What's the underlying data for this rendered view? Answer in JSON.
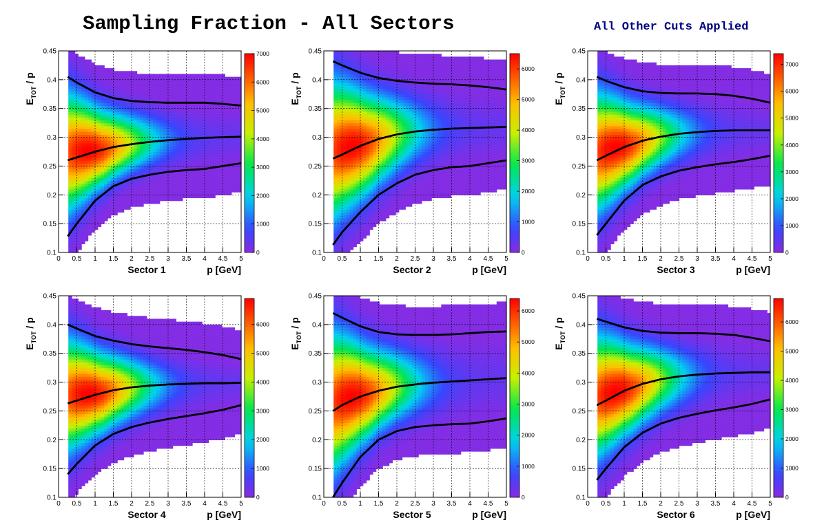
{
  "title": "Sampling Fraction - All Sectors",
  "annotation": "All Other Cuts Applied",
  "colors": {
    "annotation": "#000080",
    "curve": "#000000"
  },
  "chart_data": [
    {
      "type": "heatmap",
      "panel_label": "Sector 1",
      "xlabel": "p [GeV]",
      "ylabel_main": "E",
      "ylabel_sub": "TOT",
      "ylabel_tail": " / p",
      "xlim": [
        0,
        5
      ],
      "ylim": [
        0.1,
        0.45
      ],
      "zlim": [
        0,
        7000
      ],
      "x_ticks": [
        0,
        0.5,
        1,
        1.5,
        2,
        2.5,
        3,
        3.5,
        4,
        4.5,
        5
      ],
      "y_ticks": [
        0.1,
        0.15,
        0.2,
        0.25,
        0.3,
        0.35,
        0.4,
        0.45
      ],
      "z_ticks": [
        0,
        1000,
        2000,
        3000,
        4000,
        5000,
        6000,
        7000
      ],
      "peak": {
        "x": 0.8,
        "y": 0.28
      },
      "curves": {
        "upper": {
          "x": [
            0.25,
            0.5,
            1,
            1.5,
            2,
            2.5,
            3,
            3.5,
            4,
            4.5,
            5
          ],
          "y": [
            0.405,
            0.395,
            0.378,
            0.368,
            0.363,
            0.361,
            0.36,
            0.36,
            0.36,
            0.358,
            0.355
          ]
        },
        "mean": {
          "x": [
            0.25,
            0.5,
            1,
            1.5,
            2,
            2.5,
            3,
            3.5,
            4,
            4.5,
            5
          ],
          "y": [
            0.26,
            0.265,
            0.275,
            0.283,
            0.288,
            0.292,
            0.295,
            0.297,
            0.299,
            0.3,
            0.301
          ]
        },
        "lower": {
          "x": [
            0.25,
            0.5,
            1,
            1.5,
            2,
            2.5,
            3,
            3.5,
            4,
            4.5,
            5
          ],
          "y": [
            0.128,
            0.15,
            0.19,
            0.215,
            0.228,
            0.235,
            0.24,
            0.243,
            0.245,
            0.25,
            0.255
          ]
        }
      }
    },
    {
      "type": "heatmap",
      "panel_label": "Sector 2",
      "xlabel": "p [GeV]",
      "ylabel_main": "E",
      "ylabel_sub": "TOT",
      "ylabel_tail": " / p",
      "xlim": [
        0,
        5
      ],
      "ylim": [
        0.1,
        0.45
      ],
      "zlim": [
        0,
        6500
      ],
      "x_ticks": [
        0,
        0.5,
        1,
        1.5,
        2,
        2.5,
        3,
        3.5,
        4,
        4.5,
        5
      ],
      "y_ticks": [
        0.1,
        0.15,
        0.2,
        0.25,
        0.3,
        0.35,
        0.4,
        0.45
      ],
      "z_ticks": [
        0,
        1000,
        2000,
        3000,
        4000,
        5000,
        6000
      ],
      "peak": {
        "x": 0.75,
        "y": 0.29
      },
      "curves": {
        "upper": {
          "x": [
            0.25,
            0.5,
            1,
            1.5,
            2,
            2.5,
            3,
            3.5,
            4,
            4.5,
            5
          ],
          "y": [
            0.432,
            0.425,
            0.412,
            0.403,
            0.398,
            0.395,
            0.393,
            0.392,
            0.39,
            0.387,
            0.383
          ]
        },
        "mean": {
          "x": [
            0.25,
            0.5,
            1,
            1.5,
            2,
            2.5,
            3,
            3.5,
            4,
            4.5,
            5
          ],
          "y": [
            0.263,
            0.27,
            0.285,
            0.297,
            0.305,
            0.31,
            0.313,
            0.315,
            0.316,
            0.317,
            0.318
          ]
        },
        "lower": {
          "x": [
            0.25,
            0.5,
            1,
            1.5,
            2,
            2.5,
            3,
            3.5,
            4,
            4.5,
            5
          ],
          "y": [
            0.113,
            0.135,
            0.17,
            0.2,
            0.22,
            0.235,
            0.243,
            0.248,
            0.25,
            0.255,
            0.26
          ]
        }
      }
    },
    {
      "type": "heatmap",
      "panel_label": "Sector 3",
      "xlabel": "p [GeV]",
      "ylabel_main": "E",
      "ylabel_sub": "TOT",
      "ylabel_tail": " / p",
      "xlim": [
        0,
        5
      ],
      "ylim": [
        0.1,
        0.45
      ],
      "zlim": [
        0,
        7400
      ],
      "x_ticks": [
        0,
        0.5,
        1,
        1.5,
        2,
        2.5,
        3,
        3.5,
        4,
        4.5,
        5
      ],
      "y_ticks": [
        0.1,
        0.15,
        0.2,
        0.25,
        0.3,
        0.35,
        0.4,
        0.45
      ],
      "z_ticks": [
        0,
        1000,
        2000,
        3000,
        4000,
        5000,
        6000,
        7000
      ],
      "peak": {
        "x": 0.75,
        "y": 0.285
      },
      "curves": {
        "upper": {
          "x": [
            0.25,
            0.5,
            1,
            1.5,
            2,
            2.5,
            3,
            3.5,
            4,
            4.5,
            5
          ],
          "y": [
            0.405,
            0.398,
            0.387,
            0.38,
            0.377,
            0.376,
            0.376,
            0.375,
            0.372,
            0.367,
            0.36
          ]
        },
        "mean": {
          "x": [
            0.25,
            0.5,
            1,
            1.5,
            2,
            2.5,
            3,
            3.5,
            4,
            4.5,
            5
          ],
          "y": [
            0.26,
            0.268,
            0.283,
            0.294,
            0.301,
            0.306,
            0.309,
            0.311,
            0.312,
            0.312,
            0.312
          ]
        },
        "lower": {
          "x": [
            0.25,
            0.5,
            1,
            1.5,
            2,
            2.5,
            3,
            3.5,
            4,
            4.5,
            5
          ],
          "y": [
            0.13,
            0.15,
            0.19,
            0.217,
            0.232,
            0.242,
            0.248,
            0.253,
            0.257,
            0.262,
            0.268
          ]
        }
      }
    },
    {
      "type": "heatmap",
      "panel_label": "Sector 4",
      "xlabel": "p [GeV]",
      "ylabel_main": "E",
      "ylabel_sub": "TOT",
      "ylabel_tail": " / p",
      "xlim": [
        0,
        5
      ],
      "ylim": [
        0.1,
        0.45
      ],
      "zlim": [
        0,
        6900
      ],
      "x_ticks": [
        0,
        0.5,
        1,
        1.5,
        2,
        2.5,
        3,
        3.5,
        4,
        4.5,
        5
      ],
      "y_ticks": [
        0.1,
        0.15,
        0.2,
        0.25,
        0.3,
        0.35,
        0.4,
        0.45
      ],
      "z_ticks": [
        0,
        1000,
        2000,
        3000,
        4000,
        5000,
        6000
      ],
      "peak": {
        "x": 0.8,
        "y": 0.28
      },
      "curves": {
        "upper": {
          "x": [
            0.25,
            0.5,
            1,
            1.5,
            2,
            2.5,
            3,
            3.5,
            4,
            4.5,
            5
          ],
          "y": [
            0.4,
            0.393,
            0.38,
            0.372,
            0.366,
            0.362,
            0.359,
            0.356,
            0.352,
            0.347,
            0.34
          ]
        },
        "mean": {
          "x": [
            0.25,
            0.5,
            1,
            1.5,
            2,
            2.5,
            3,
            3.5,
            4,
            4.5,
            5
          ],
          "y": [
            0.263,
            0.268,
            0.278,
            0.286,
            0.291,
            0.294,
            0.296,
            0.297,
            0.298,
            0.298,
            0.299
          ]
        },
        "lower": {
          "x": [
            0.25,
            0.5,
            1,
            1.5,
            2,
            2.5,
            3,
            3.5,
            4,
            4.5,
            5
          ],
          "y": [
            0.14,
            0.158,
            0.19,
            0.21,
            0.222,
            0.23,
            0.236,
            0.241,
            0.246,
            0.252,
            0.26
          ]
        }
      }
    },
    {
      "type": "heatmap",
      "panel_label": "Sector 5",
      "xlabel": "p [GeV]",
      "ylabel_main": "E",
      "ylabel_sub": "TOT",
      "ylabel_tail": " / p",
      "xlim": [
        0,
        5
      ],
      "ylim": [
        0.1,
        0.45
      ],
      "zlim": [
        0,
        6400
      ],
      "x_ticks": [
        0,
        0.5,
        1,
        1.5,
        2,
        2.5,
        3,
        3.5,
        4,
        4.5,
        5
      ],
      "y_ticks": [
        0.1,
        0.15,
        0.2,
        0.25,
        0.3,
        0.35,
        0.4,
        0.45
      ],
      "z_ticks": [
        0,
        1000,
        2000,
        3000,
        4000,
        5000,
        6000
      ],
      "peak": {
        "x": 0.75,
        "y": 0.28
      },
      "curves": {
        "upper": {
          "x": [
            0.25,
            0.5,
            1,
            1.5,
            2,
            2.5,
            3,
            3.5,
            4,
            4.5,
            5
          ],
          "y": [
            0.42,
            0.412,
            0.397,
            0.387,
            0.383,
            0.382,
            0.382,
            0.383,
            0.385,
            0.387,
            0.388
          ]
        },
        "mean": {
          "x": [
            0.25,
            0.5,
            1,
            1.5,
            2,
            2.5,
            3,
            3.5,
            4,
            4.5,
            5
          ],
          "y": [
            0.25,
            0.26,
            0.275,
            0.285,
            0.292,
            0.296,
            0.299,
            0.301,
            0.303,
            0.305,
            0.307
          ]
        },
        "lower": {
          "x": [
            0.25,
            0.5,
            1,
            1.5,
            2,
            2.5,
            3,
            3.5,
            4,
            4.5,
            5
          ],
          "y": [
            0.1,
            0.125,
            0.17,
            0.2,
            0.215,
            0.222,
            0.225,
            0.227,
            0.228,
            0.232,
            0.237
          ]
        }
      }
    },
    {
      "type": "heatmap",
      "panel_label": "Sector 6",
      "xlabel": "p [GeV]",
      "ylabel_main": "E",
      "ylabel_sub": "TOT",
      "ylabel_tail": " / p",
      "xlim": [
        0,
        5
      ],
      "ylim": [
        0.1,
        0.45
      ],
      "zlim": [
        0,
        6800
      ],
      "x_ticks": [
        0,
        0.5,
        1,
        1.5,
        2,
        2.5,
        3,
        3.5,
        4,
        4.5,
        5
      ],
      "y_ticks": [
        0.1,
        0.15,
        0.2,
        0.25,
        0.3,
        0.35,
        0.4,
        0.45
      ],
      "z_ticks": [
        0,
        1000,
        2000,
        3000,
        4000,
        5000,
        6000
      ],
      "peak": {
        "x": 0.75,
        "y": 0.285
      },
      "curves": {
        "upper": {
          "x": [
            0.25,
            0.5,
            1,
            1.5,
            2,
            2.5,
            3,
            3.5,
            4,
            4.5,
            5
          ],
          "y": [
            0.41,
            0.405,
            0.395,
            0.389,
            0.386,
            0.385,
            0.385,
            0.384,
            0.382,
            0.377,
            0.371
          ]
        },
        "mean": {
          "x": [
            0.25,
            0.5,
            1,
            1.5,
            2,
            2.5,
            3,
            3.5,
            4,
            4.5,
            5
          ],
          "y": [
            0.26,
            0.268,
            0.285,
            0.297,
            0.305,
            0.31,
            0.313,
            0.315,
            0.316,
            0.317,
            0.317
          ]
        },
        "lower": {
          "x": [
            0.25,
            0.5,
            1,
            1.5,
            2,
            2.5,
            3,
            3.5,
            4,
            4.5,
            5
          ],
          "y": [
            0.13,
            0.15,
            0.187,
            0.212,
            0.228,
            0.238,
            0.245,
            0.251,
            0.256,
            0.262,
            0.27
          ]
        }
      }
    }
  ]
}
